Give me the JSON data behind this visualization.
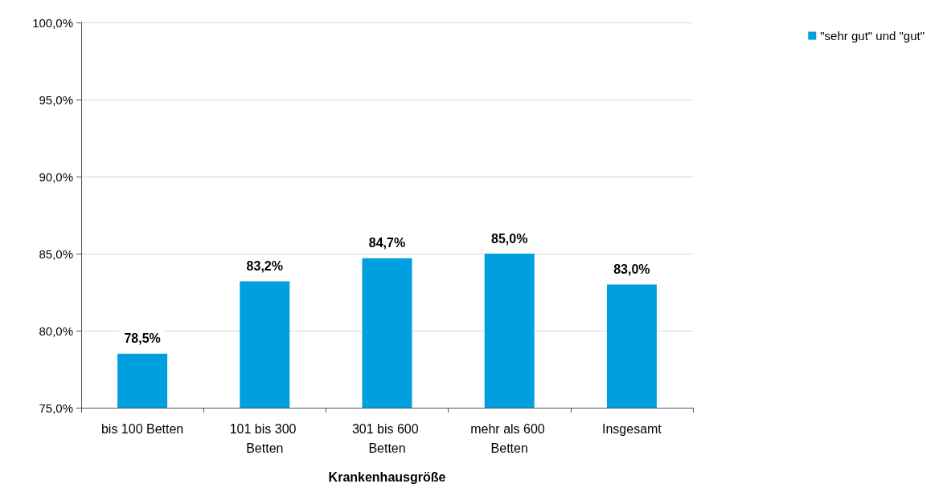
{
  "chart_data": {
    "type": "bar",
    "xlabel": "Krankenhausgröße",
    "categories": [
      "bis 100 Betten",
      "101 bis 300 Betten",
      "301 bis 600 Betten",
      "mehr als 600 Betten",
      "Insgesamt"
    ],
    "series": [
      {
        "name": "\"sehr gut\" und \"gut\"",
        "color": "#009fdf",
        "values": [
          78.5,
          83.2,
          84.7,
          85.0,
          83.0
        ],
        "value_labels": [
          "78,5%",
          "83,2%",
          "84,7%",
          "85,0%",
          "83,0%"
        ]
      }
    ],
    "ylim": [
      75,
      100
    ],
    "yticks": [
      {
        "value": 75,
        "label": "75,0%"
      },
      {
        "value": 80,
        "label": "80,0%"
      },
      {
        "value": 85,
        "label": "85,0%"
      },
      {
        "value": 90,
        "label": "90,0%"
      },
      {
        "value": 95,
        "label": "95,0%"
      },
      {
        "value": 100,
        "label": "100,0%"
      }
    ],
    "grid": "y",
    "legend": "top right"
  }
}
